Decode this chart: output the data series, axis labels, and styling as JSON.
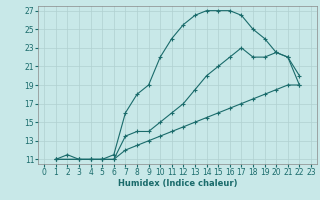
{
  "xlabel": "Humidex (Indice chaleur)",
  "bg_color": "#c8e8e8",
  "grid_color": "#b0d0d0",
  "line_color": "#1a6b6b",
  "xlim": [
    -0.5,
    23.5
  ],
  "ylim": [
    10.5,
    27.5
  ],
  "yticks": [
    11,
    13,
    15,
    17,
    19,
    21,
    23,
    25,
    27
  ],
  "xticks": [
    0,
    1,
    2,
    3,
    4,
    5,
    6,
    7,
    8,
    9,
    10,
    11,
    12,
    13,
    14,
    15,
    16,
    17,
    18,
    19,
    20,
    21,
    22,
    23
  ],
  "line1": {
    "x": [
      1,
      2,
      3,
      4,
      5,
      6,
      7,
      8,
      9,
      10,
      11,
      12,
      13,
      14,
      15,
      16,
      17,
      18,
      19,
      20,
      21,
      22
    ],
    "y": [
      11,
      11.5,
      11,
      11,
      11,
      11.5,
      16,
      18,
      19,
      22,
      24,
      25.5,
      26.5,
      27,
      27,
      27,
      26.5,
      25,
      24,
      22.5,
      22,
      20
    ]
  },
  "line2": {
    "x": [
      1,
      3,
      4,
      5,
      6,
      7,
      8,
      9,
      10,
      11,
      12,
      13,
      14,
      15,
      16,
      17,
      18,
      19,
      20,
      21,
      22
    ],
    "y": [
      11,
      11,
      11,
      11,
      11,
      13.5,
      14,
      14,
      15,
      16,
      17,
      18.5,
      20,
      21,
      22,
      23,
      22,
      22,
      22.5,
      22,
      19
    ]
  },
  "line3": {
    "x": [
      1,
      3,
      4,
      5,
      6,
      7,
      8,
      9,
      10,
      11,
      12,
      13,
      14,
      15,
      16,
      17,
      18,
      19,
      20,
      21,
      22
    ],
    "y": [
      11,
      11,
      11,
      11,
      11,
      12,
      12.5,
      13,
      13.5,
      14,
      14.5,
      15,
      15.5,
      16,
      16.5,
      17,
      17.5,
      18,
      18.5,
      19,
      19
    ]
  }
}
